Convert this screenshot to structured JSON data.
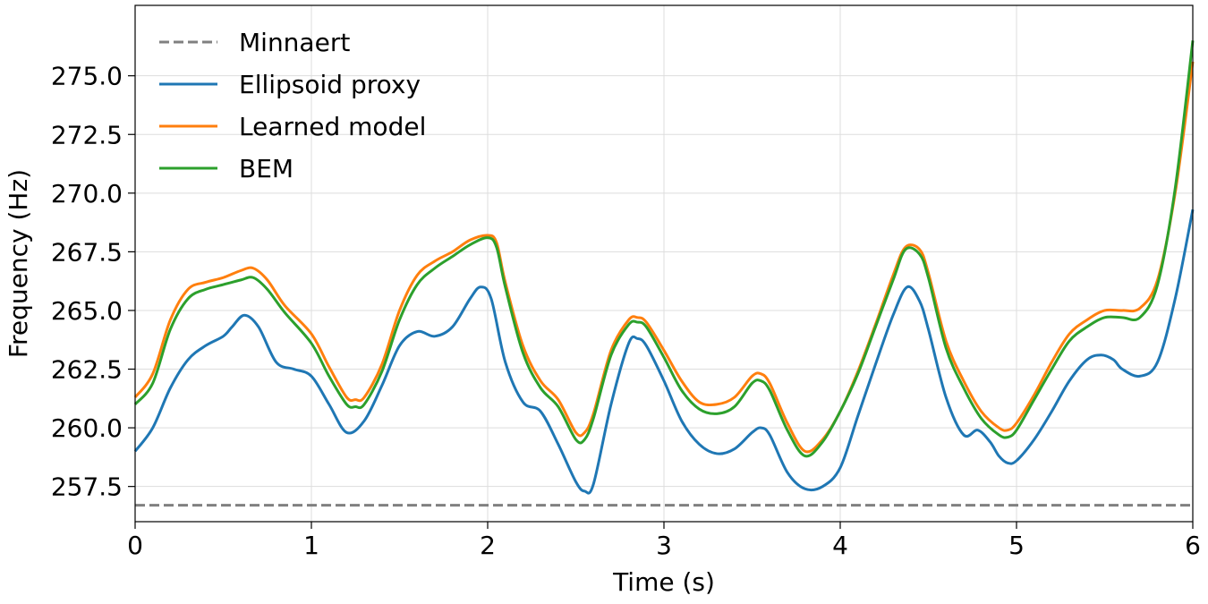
{
  "chart_data": {
    "type": "line",
    "title": "",
    "xlabel": "Time (s)",
    "ylabel": "Frequency (Hz)",
    "xlim": [
      0,
      6
    ],
    "ylim": [
      256.0,
      278.0
    ],
    "xticks": [
      0,
      1,
      2,
      3,
      4,
      5,
      6
    ],
    "xtick_labels": [
      "0",
      "1",
      "2",
      "3",
      "4",
      "5",
      "6"
    ],
    "yticks": [
      257.5,
      260.0,
      262.5,
      265.0,
      267.5,
      270.0,
      272.5,
      275.0
    ],
    "ytick_labels": [
      "257.5",
      "260.0",
      "262.5",
      "265.0",
      "267.5",
      "270.0",
      "272.5",
      "275.0"
    ],
    "grid": true,
    "legend_position": "top-left",
    "series": [
      {
        "name": "Minnaert",
        "color": "#808080",
        "style": "dashed",
        "x": [
          0,
          6
        ],
        "y": [
          256.7,
          256.7
        ]
      },
      {
        "name": "Ellipsoid proxy",
        "color": "#1f77b4",
        "style": "solid",
        "x": [
          0,
          0.1,
          0.2,
          0.3,
          0.4,
          0.5,
          0.55,
          0.62,
          0.7,
          0.8,
          0.9,
          1.0,
          1.1,
          1.2,
          1.3,
          1.4,
          1.5,
          1.6,
          1.7,
          1.8,
          1.9,
          1.96,
          2.02,
          2.1,
          2.2,
          2.3,
          2.4,
          2.5,
          2.55,
          2.6,
          2.7,
          2.8,
          2.85,
          2.9,
          3.0,
          3.1,
          3.2,
          3.3,
          3.4,
          3.5,
          3.55,
          3.6,
          3.7,
          3.8,
          3.9,
          4.0,
          4.1,
          4.2,
          4.3,
          4.38,
          4.45,
          4.5,
          4.6,
          4.7,
          4.78,
          4.85,
          4.9,
          4.95,
          5.0,
          5.1,
          5.2,
          5.3,
          5.4,
          5.48,
          5.55,
          5.6,
          5.7,
          5.8,
          5.9,
          6.0
        ],
        "y": [
          259.0,
          260.0,
          261.7,
          262.9,
          263.5,
          263.9,
          264.3,
          264.8,
          264.3,
          262.8,
          262.5,
          262.2,
          261.0,
          259.8,
          260.3,
          261.8,
          263.5,
          264.1,
          263.9,
          264.3,
          265.5,
          266.0,
          265.5,
          262.8,
          261.1,
          260.7,
          259.3,
          257.7,
          257.3,
          257.6,
          261.0,
          263.6,
          263.8,
          263.5,
          262.0,
          260.3,
          259.3,
          258.9,
          259.1,
          259.8,
          260.0,
          259.7,
          258.1,
          257.4,
          257.5,
          258.3,
          260.5,
          262.7,
          264.8,
          266.0,
          265.4,
          264.2,
          261.3,
          259.7,
          259.9,
          259.4,
          258.8,
          258.5,
          258.6,
          259.5,
          260.7,
          262.0,
          262.9,
          263.1,
          262.9,
          262.5,
          262.2,
          262.8,
          265.5,
          269.3
        ]
      },
      {
        "name": "Learned model",
        "color": "#ff7f0e",
        "style": "solid",
        "x": [
          0,
          0.1,
          0.2,
          0.3,
          0.4,
          0.5,
          0.6,
          0.67,
          0.75,
          0.85,
          1.0,
          1.1,
          1.2,
          1.25,
          1.3,
          1.4,
          1.5,
          1.6,
          1.7,
          1.8,
          1.9,
          2.0,
          2.05,
          2.1,
          2.2,
          2.3,
          2.4,
          2.5,
          2.55,
          2.6,
          2.7,
          2.8,
          2.85,
          2.9,
          3.0,
          3.1,
          3.2,
          3.3,
          3.4,
          3.5,
          3.55,
          3.6,
          3.7,
          3.8,
          3.9,
          4.0,
          4.1,
          4.2,
          4.3,
          4.37,
          4.45,
          4.5,
          4.6,
          4.7,
          4.8,
          4.9,
          4.95,
          5.0,
          5.1,
          5.2,
          5.3,
          5.4,
          5.5,
          5.6,
          5.7,
          5.8,
          5.9,
          6.0
        ],
        "y": [
          261.3,
          262.3,
          264.6,
          265.9,
          266.2,
          266.4,
          266.7,
          266.8,
          266.3,
          265.2,
          264.0,
          262.6,
          261.3,
          261.2,
          261.3,
          262.7,
          265.0,
          266.5,
          267.1,
          267.5,
          268.0,
          268.2,
          267.9,
          266.2,
          263.5,
          262.0,
          261.2,
          259.8,
          259.8,
          260.6,
          263.3,
          264.6,
          264.7,
          264.5,
          263.3,
          262.0,
          261.1,
          261.0,
          261.3,
          262.2,
          262.3,
          261.9,
          260.2,
          259.0,
          259.5,
          260.7,
          262.4,
          264.4,
          266.5,
          267.7,
          267.6,
          266.6,
          263.7,
          262.0,
          260.7,
          260.0,
          259.9,
          260.2,
          261.4,
          262.8,
          264.0,
          264.6,
          265.0,
          265.0,
          265.1,
          266.3,
          270.0,
          275.6
        ]
      },
      {
        "name": "BEM",
        "color": "#2ca02c",
        "style": "solid",
        "x": [
          0,
          0.1,
          0.2,
          0.3,
          0.4,
          0.5,
          0.6,
          0.67,
          0.75,
          0.85,
          1.0,
          1.1,
          1.2,
          1.25,
          1.3,
          1.4,
          1.5,
          1.6,
          1.7,
          1.8,
          1.9,
          2.0,
          2.05,
          2.1,
          2.2,
          2.3,
          2.4,
          2.5,
          2.55,
          2.6,
          2.7,
          2.8,
          2.85,
          2.9,
          3.0,
          3.1,
          3.2,
          3.3,
          3.4,
          3.5,
          3.55,
          3.6,
          3.7,
          3.8,
          3.9,
          4.0,
          4.1,
          4.2,
          4.3,
          4.37,
          4.45,
          4.5,
          4.6,
          4.7,
          4.8,
          4.9,
          4.95,
          5.0,
          5.1,
          5.2,
          5.3,
          5.4,
          5.5,
          5.6,
          5.7,
          5.8,
          5.9,
          6.0
        ],
        "y": [
          261.0,
          261.9,
          264.2,
          265.5,
          265.9,
          266.1,
          266.3,
          266.4,
          265.9,
          264.9,
          263.6,
          262.2,
          261.0,
          260.9,
          261.0,
          262.4,
          264.6,
          266.1,
          266.8,
          267.3,
          267.8,
          268.1,
          267.7,
          266.0,
          263.2,
          261.7,
          260.9,
          259.5,
          259.5,
          260.4,
          263.1,
          264.4,
          264.5,
          264.3,
          263.0,
          261.6,
          260.8,
          260.6,
          260.9,
          261.9,
          262.0,
          261.6,
          259.9,
          258.8,
          259.4,
          260.7,
          262.3,
          264.3,
          266.3,
          267.6,
          267.4,
          266.4,
          263.4,
          261.7,
          260.4,
          259.7,
          259.6,
          259.9,
          261.2,
          262.5,
          263.7,
          264.3,
          264.7,
          264.7,
          264.7,
          266.1,
          270.2,
          276.5
        ]
      }
    ]
  }
}
